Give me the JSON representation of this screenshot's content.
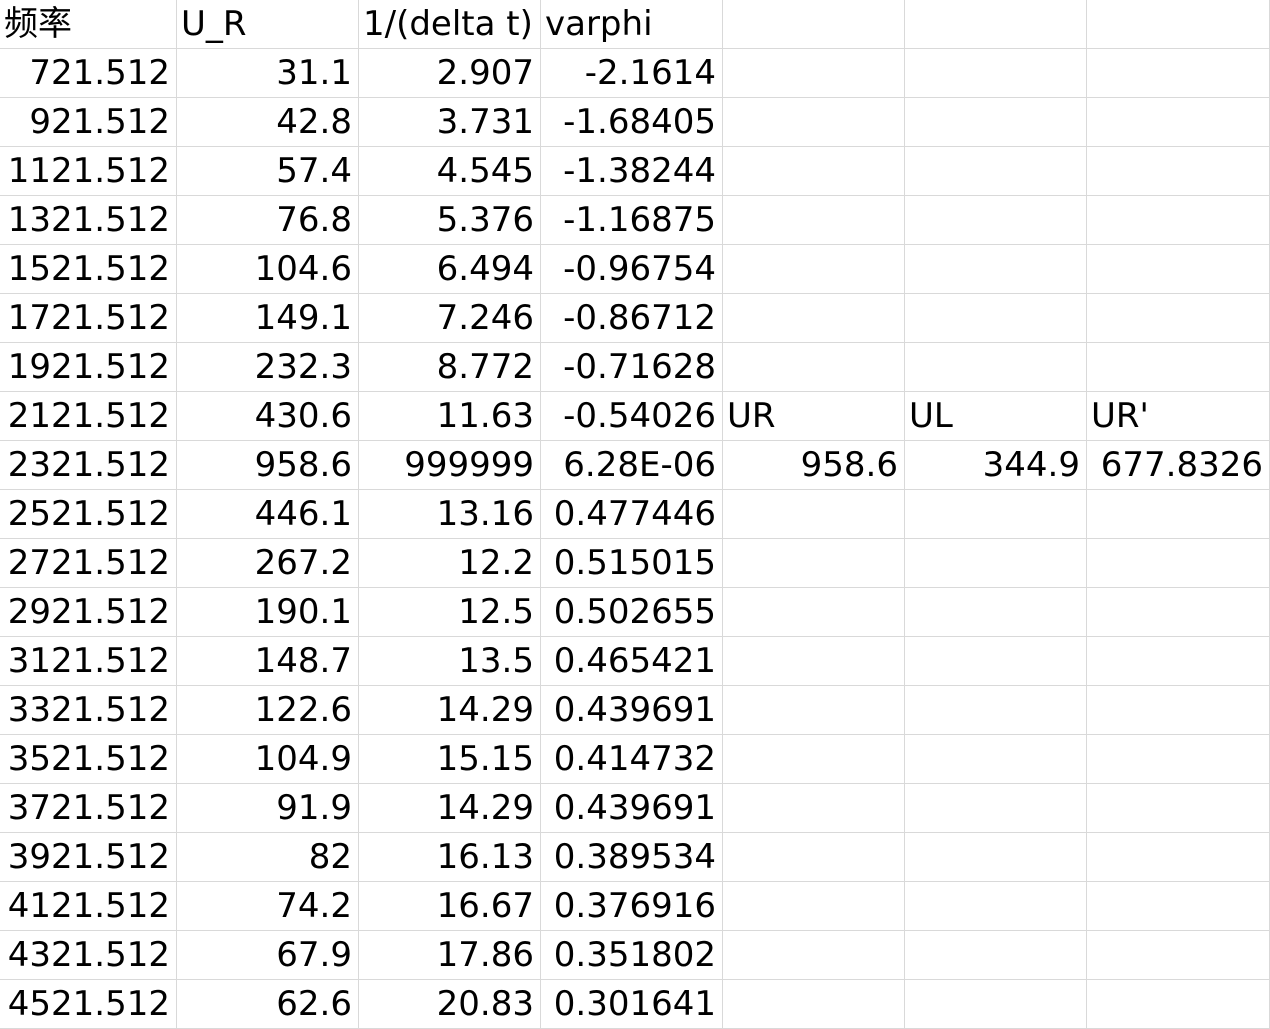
{
  "sheet": {
    "header": [
      "频率",
      "U_R",
      "1/(delta t)",
      "varphi",
      "",
      "",
      ""
    ],
    "rows": [
      [
        "721.512",
        "31.1",
        "2.907",
        "-2.1614",
        "",
        "",
        ""
      ],
      [
        "921.512",
        "42.8",
        "3.731",
        "-1.68405",
        "",
        "",
        ""
      ],
      [
        "1121.512",
        "57.4",
        "4.545",
        "-1.38244",
        "",
        "",
        ""
      ],
      [
        "1321.512",
        "76.8",
        "5.376",
        "-1.16875",
        "",
        "",
        ""
      ],
      [
        "1521.512",
        "104.6",
        "6.494",
        "-0.96754",
        "",
        "",
        ""
      ],
      [
        "1721.512",
        "149.1",
        "7.246",
        "-0.86712",
        "",
        "",
        ""
      ],
      [
        "1921.512",
        "232.3",
        "8.772",
        "-0.71628",
        "",
        "",
        ""
      ],
      [
        "2121.512",
        "430.6",
        "11.63",
        "-0.54026",
        "UR",
        "UL",
        "UR'"
      ],
      [
        "2321.512",
        "958.6",
        "999999",
        "6.28E-06",
        "958.6",
        "344.9",
        "677.8326"
      ],
      [
        "2521.512",
        "446.1",
        "13.16",
        "0.477446",
        "",
        "",
        ""
      ],
      [
        "2721.512",
        "267.2",
        "12.2",
        "0.515015",
        "",
        "",
        ""
      ],
      [
        "2921.512",
        "190.1",
        "12.5",
        "0.502655",
        "",
        "",
        ""
      ],
      [
        "3121.512",
        "148.7",
        "13.5",
        "0.465421",
        "",
        "",
        ""
      ],
      [
        "3321.512",
        "122.6",
        "14.29",
        "0.439691",
        "",
        "",
        ""
      ],
      [
        "3521.512",
        "104.9",
        "15.15",
        "0.414732",
        "",
        "",
        ""
      ],
      [
        "3721.512",
        "91.9",
        "14.29",
        "0.439691",
        "",
        "",
        ""
      ],
      [
        "3921.512",
        "82",
        "16.13",
        "0.389534",
        "",
        "",
        ""
      ],
      [
        "4121.512",
        "74.2",
        "16.67",
        "0.376916",
        "",
        "",
        ""
      ],
      [
        "4321.512",
        "67.9",
        "17.86",
        "0.351802",
        "",
        "",
        ""
      ],
      [
        "4521.512",
        "62.6",
        "20.83",
        "0.301641",
        "",
        "",
        ""
      ]
    ]
  }
}
